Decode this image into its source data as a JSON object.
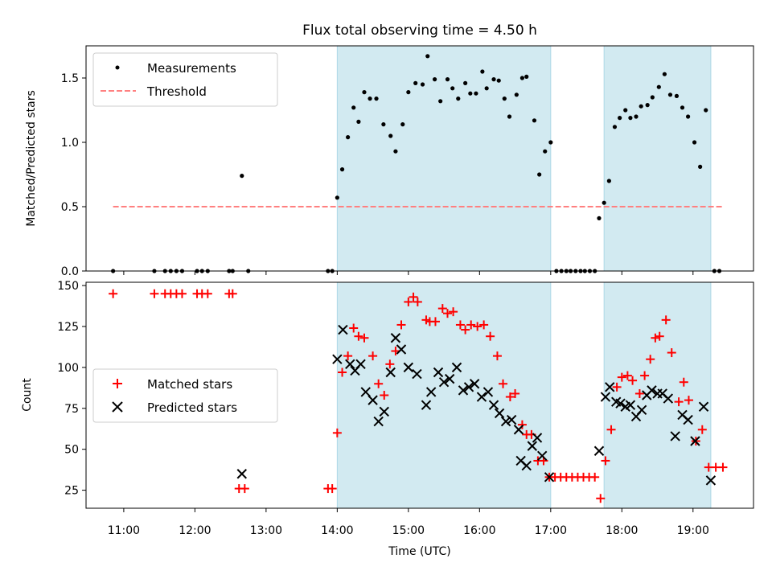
{
  "title": "Flux total observing time = 4.50 h",
  "x_axis": {
    "label": "Time (UTC)",
    "ticks": [
      {
        "value": 11,
        "label": "11:00"
      },
      {
        "value": 12,
        "label": "12:00"
      },
      {
        "value": 13,
        "label": "13:00"
      },
      {
        "value": 14,
        "label": "14:00"
      },
      {
        "value": 15,
        "label": "15:00"
      },
      {
        "value": 16,
        "label": "16:00"
      },
      {
        "value": 17,
        "label": "17:00"
      },
      {
        "value": 18,
        "label": "18:00"
      },
      {
        "value": 19,
        "label": "19:00"
      }
    ]
  },
  "colors": {
    "shade": "#add8e6",
    "measurements": "#000000",
    "threshold": "#ff8080",
    "matched": "#ff0000",
    "predicted": "#000000"
  },
  "chart_data": [
    {
      "type": "scatter",
      "panel": "top",
      "ylabel": "Matched/Predicted stars",
      "xlim": [
        10.47,
        19.85
      ],
      "ylim": [
        0,
        1.75
      ],
      "yticks": [
        {
          "value": 0.0,
          "label": "0.0"
        },
        {
          "value": 0.5,
          "label": "0.5"
        },
        {
          "value": 1.0,
          "label": "1.0"
        },
        {
          "value": 1.5,
          "label": "1.5"
        }
      ],
      "shaded_intervals": [
        [
          14.0,
          17.0
        ],
        [
          17.75,
          19.25
        ]
      ],
      "legend": {
        "placement": "upper-left",
        "entries": [
          "Measurements",
          "Threshold"
        ]
      },
      "threshold": {
        "name": "Threshold",
        "y": 0.5,
        "x_range": [
          10.85,
          19.42
        ],
        "style": "dashed"
      },
      "series": [
        {
          "name": "Measurements",
          "marker": "dot",
          "points": [
            [
              10.85,
              0.0
            ],
            [
              11.43,
              0.0
            ],
            [
              11.58,
              0.0
            ],
            [
              11.66,
              0.0
            ],
            [
              11.74,
              0.0
            ],
            [
              11.82,
              0.0
            ],
            [
              12.03,
              0.0
            ],
            [
              12.1,
              0.0
            ],
            [
              12.18,
              0.0
            ],
            [
              12.48,
              0.0
            ],
            [
              12.53,
              0.0
            ],
            [
              12.66,
              0.74
            ],
            [
              12.75,
              0.0
            ],
            [
              13.87,
              0.0
            ],
            [
              13.93,
              0.0
            ],
            [
              14.0,
              0.57
            ],
            [
              14.07,
              0.79
            ],
            [
              14.15,
              1.04
            ],
            [
              14.23,
              1.27
            ],
            [
              14.3,
              1.16
            ],
            [
              14.38,
              1.39
            ],
            [
              14.46,
              1.34
            ],
            [
              14.55,
              1.34
            ],
            [
              14.65,
              1.14
            ],
            [
              14.75,
              1.05
            ],
            [
              14.82,
              0.93
            ],
            [
              14.92,
              1.14
            ],
            [
              15.0,
              1.39
            ],
            [
              15.1,
              1.46
            ],
            [
              15.2,
              1.45
            ],
            [
              15.27,
              1.67
            ],
            [
              15.37,
              1.49
            ],
            [
              15.45,
              1.32
            ],
            [
              15.55,
              1.49
            ],
            [
              15.62,
              1.42
            ],
            [
              15.7,
              1.34
            ],
            [
              15.8,
              1.46
            ],
            [
              15.87,
              1.38
            ],
            [
              15.95,
              1.38
            ],
            [
              16.04,
              1.55
            ],
            [
              16.1,
              1.42
            ],
            [
              16.2,
              1.49
            ],
            [
              16.27,
              1.48
            ],
            [
              16.35,
              1.34
            ],
            [
              16.42,
              1.2
            ],
            [
              16.52,
              1.37
            ],
            [
              16.6,
              1.5
            ],
            [
              16.66,
              1.51
            ],
            [
              16.77,
              1.17
            ],
            [
              16.84,
              0.75
            ],
            [
              16.92,
              0.93
            ],
            [
              17.0,
              1.0
            ],
            [
              17.08,
              0.0
            ],
            [
              17.15,
              0.0
            ],
            [
              17.22,
              0.0
            ],
            [
              17.28,
              0.0
            ],
            [
              17.35,
              0.0
            ],
            [
              17.42,
              0.0
            ],
            [
              17.48,
              0.0
            ],
            [
              17.55,
              0.0
            ],
            [
              17.62,
              0.0
            ],
            [
              17.68,
              0.41
            ],
            [
              17.75,
              0.53
            ],
            [
              17.82,
              0.7
            ],
            [
              17.9,
              1.12
            ],
            [
              17.97,
              1.19
            ],
            [
              18.05,
              1.25
            ],
            [
              18.12,
              1.19
            ],
            [
              18.2,
              1.2
            ],
            [
              18.27,
              1.28
            ],
            [
              18.36,
              1.29
            ],
            [
              18.43,
              1.35
            ],
            [
              18.52,
              1.43
            ],
            [
              18.6,
              1.53
            ],
            [
              18.68,
              1.37
            ],
            [
              18.77,
              1.36
            ],
            [
              18.85,
              1.27
            ],
            [
              18.93,
              1.2
            ],
            [
              19.02,
              1.0
            ],
            [
              19.1,
              0.81
            ],
            [
              19.18,
              1.25
            ],
            [
              19.3,
              0.0
            ],
            [
              19.37,
              0.0
            ]
          ]
        }
      ]
    },
    {
      "type": "scatter",
      "panel": "bottom",
      "xlabel": "Time (UTC)",
      "ylabel": "Count",
      "xlim": [
        10.47,
        19.85
      ],
      "ylim": [
        14,
        152
      ],
      "yticks": [
        {
          "value": 25,
          "label": "25"
        },
        {
          "value": 50,
          "label": "50"
        },
        {
          "value": 75,
          "label": "75"
        },
        {
          "value": 100,
          "label": "100"
        },
        {
          "value": 125,
          "label": "125"
        },
        {
          "value": 150,
          "label": "150"
        }
      ],
      "shaded_intervals": [
        [
          14.0,
          17.0
        ],
        [
          17.75,
          19.25
        ]
      ],
      "legend": {
        "placement": "center-left",
        "entries": [
          "Matched stars",
          "Predicted stars"
        ]
      },
      "series": [
        {
          "name": "Matched stars",
          "marker": "plus",
          "points": [
            [
              10.85,
              145
            ],
            [
              11.43,
              145
            ],
            [
              11.58,
              145
            ],
            [
              11.66,
              145
            ],
            [
              11.74,
              145
            ],
            [
              11.82,
              145
            ],
            [
              12.03,
              145
            ],
            [
              12.1,
              145
            ],
            [
              12.18,
              145
            ],
            [
              12.48,
              145
            ],
            [
              12.53,
              145
            ],
            [
              12.62,
              26
            ],
            [
              12.7,
              26
            ],
            [
              13.87,
              26
            ],
            [
              13.93,
              26
            ],
            [
              14.0,
              60
            ],
            [
              14.07,
              97
            ],
            [
              14.15,
              107
            ],
            [
              14.23,
              124
            ],
            [
              14.3,
              119
            ],
            [
              14.38,
              118
            ],
            [
              14.5,
              107
            ],
            [
              14.58,
              90
            ],
            [
              14.66,
              83
            ],
            [
              14.74,
              102
            ],
            [
              14.82,
              110
            ],
            [
              14.9,
              126
            ],
            [
              15.0,
              140
            ],
            [
              15.07,
              143
            ],
            [
              15.13,
              140
            ],
            [
              15.25,
              129
            ],
            [
              15.3,
              128
            ],
            [
              15.38,
              128
            ],
            [
              15.48,
              136
            ],
            [
              15.55,
              133
            ],
            [
              15.63,
              134
            ],
            [
              15.73,
              126
            ],
            [
              15.8,
              123
            ],
            [
              15.88,
              126
            ],
            [
              15.97,
              125
            ],
            [
              16.06,
              126
            ],
            [
              16.15,
              119
            ],
            [
              16.25,
              107
            ],
            [
              16.33,
              90
            ],
            [
              16.43,
              82
            ],
            [
              16.5,
              84
            ],
            [
              16.6,
              65
            ],
            [
              16.66,
              59
            ],
            [
              16.73,
              59
            ],
            [
              16.82,
              43
            ],
            [
              16.9,
              43
            ],
            [
              16.98,
              33
            ],
            [
              17.06,
              33
            ],
            [
              17.14,
              33
            ],
            [
              17.22,
              33
            ],
            [
              17.3,
              33
            ],
            [
              17.38,
              33
            ],
            [
              17.46,
              33
            ],
            [
              17.54,
              33
            ],
            [
              17.62,
              33
            ],
            [
              17.7,
              20
            ],
            [
              17.77,
              43
            ],
            [
              17.85,
              62
            ],
            [
              17.93,
              88
            ],
            [
              18.0,
              94
            ],
            [
              18.08,
              95
            ],
            [
              18.15,
              92
            ],
            [
              18.25,
              84
            ],
            [
              18.32,
              95
            ],
            [
              18.4,
              105
            ],
            [
              18.47,
              118
            ],
            [
              18.53,
              119
            ],
            [
              18.62,
              129
            ],
            [
              18.7,
              109
            ],
            [
              18.8,
              79
            ],
            [
              18.87,
              91
            ],
            [
              18.94,
              80
            ],
            [
              19.04,
              55
            ],
            [
              19.13,
              62
            ],
            [
              19.22,
              39
            ],
            [
              19.32,
              39
            ],
            [
              19.42,
              39
            ]
          ]
        },
        {
          "name": "Predicted stars",
          "marker": "x",
          "points": [
            [
              12.66,
              35
            ],
            [
              14.0,
              105
            ],
            [
              14.08,
              123
            ],
            [
              14.18,
              102
            ],
            [
              14.25,
              98
            ],
            [
              14.33,
              102
            ],
            [
              14.4,
              85
            ],
            [
              14.5,
              80
            ],
            [
              14.58,
              67
            ],
            [
              14.66,
              73
            ],
            [
              14.75,
              97
            ],
            [
              14.82,
              118
            ],
            [
              14.9,
              111
            ],
            [
              15.0,
              100
            ],
            [
              15.12,
              96
            ],
            [
              15.25,
              77
            ],
            [
              15.32,
              85
            ],
            [
              15.42,
              97
            ],
            [
              15.5,
              91
            ],
            [
              15.58,
              93
            ],
            [
              15.68,
              100
            ],
            [
              15.77,
              86
            ],
            [
              15.85,
              88
            ],
            [
              15.93,
              90
            ],
            [
              16.03,
              82
            ],
            [
              16.12,
              85
            ],
            [
              16.2,
              77
            ],
            [
              16.28,
              72
            ],
            [
              16.37,
              67
            ],
            [
              16.45,
              68
            ],
            [
              16.55,
              62
            ],
            [
              16.58,
              43
            ],
            [
              16.66,
              40
            ],
            [
              16.74,
              52
            ],
            [
              16.81,
              57
            ],
            [
              16.88,
              46
            ],
            [
              16.98,
              33
            ],
            [
              17.68,
              49
            ],
            [
              17.77,
              82
            ],
            [
              17.83,
              88
            ],
            [
              17.92,
              79
            ],
            [
              17.98,
              78
            ],
            [
              18.05,
              76
            ],
            [
              18.12,
              77
            ],
            [
              18.2,
              70
            ],
            [
              18.28,
              74
            ],
            [
              18.35,
              83
            ],
            [
              18.42,
              86
            ],
            [
              18.5,
              84
            ],
            [
              18.57,
              84
            ],
            [
              18.65,
              81
            ],
            [
              18.75,
              58
            ],
            [
              18.85,
              71
            ],
            [
              18.93,
              68
            ],
            [
              19.03,
              55
            ],
            [
              19.15,
              76
            ],
            [
              19.25,
              31
            ]
          ]
        }
      ]
    }
  ]
}
